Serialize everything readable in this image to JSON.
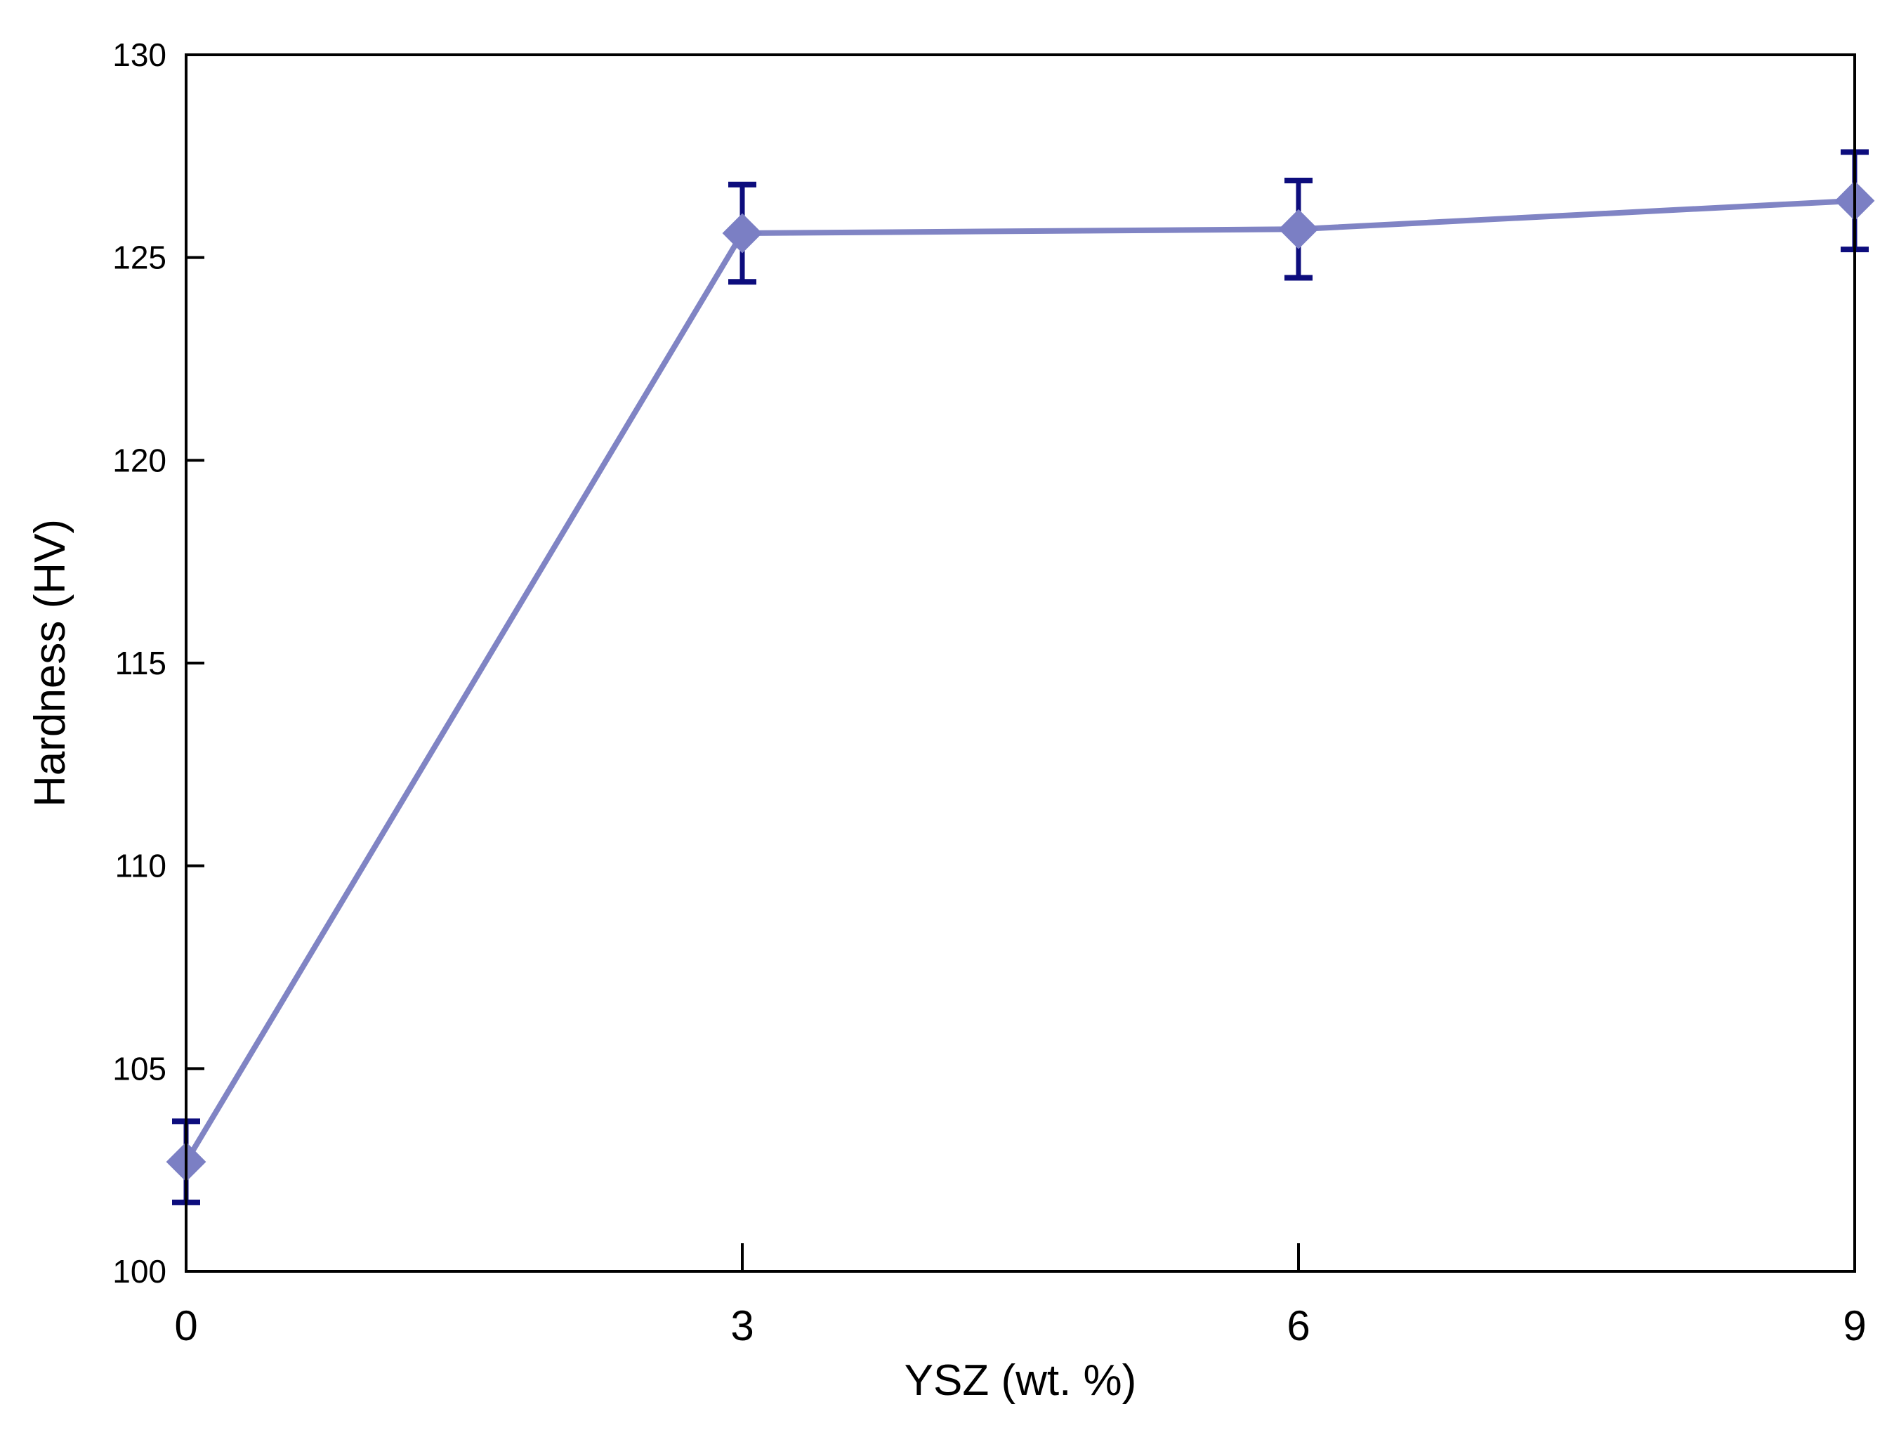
{
  "chart_data": {
    "type": "line",
    "title": "",
    "xlabel": "YSZ (wt. %)",
    "ylabel": "Hardness (HV)",
    "x": [
      0,
      3,
      6,
      9
    ],
    "x_ticks": [
      0,
      3,
      6,
      9
    ],
    "y_ticks": [
      100,
      105,
      110,
      115,
      120,
      125,
      130
    ],
    "xlim": [
      0,
      9
    ],
    "ylim": [
      100,
      130
    ],
    "grid": false,
    "legend": "none",
    "series": [
      {
        "marker": "diamond",
        "values": [
          102.7,
          125.6,
          125.7,
          126.4
        ],
        "error": [
          [
            101.7,
            103.7
          ],
          [
            124.4,
            126.8
          ],
          [
            124.5,
            126.9
          ],
          [
            125.2,
            127.6
          ]
        ]
      }
    ],
    "colors": {
      "line": "#8084c4",
      "marker": "#7b7fc4",
      "error_bar": "#0d0d7d",
      "axis": "#000000"
    }
  }
}
